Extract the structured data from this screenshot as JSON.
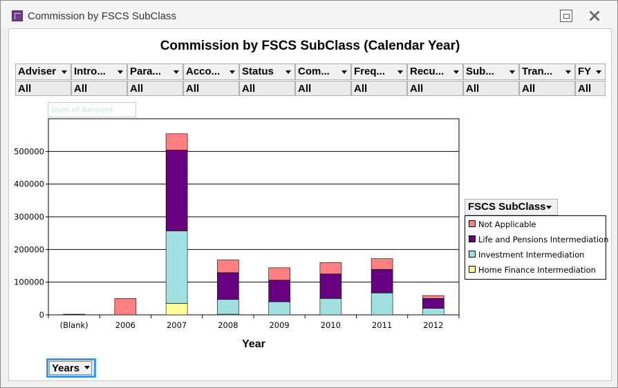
{
  "window": {
    "title": "Commission by FSCS SubClass"
  },
  "filters": [
    {
      "label": "Adviser",
      "value": "All"
    },
    {
      "label": "Intro...",
      "value": "All"
    },
    {
      "label": "Para...",
      "value": "All"
    },
    {
      "label": "Acco...",
      "value": "All"
    },
    {
      "label": "Status",
      "value": "All"
    },
    {
      "label": "Com...",
      "value": "All"
    },
    {
      "label": "Freq...",
      "value": "All"
    },
    {
      "label": "Recu...",
      "value": "All"
    },
    {
      "label": "Sub...",
      "value": "All"
    },
    {
      "label": "Tran...",
      "value": "All"
    },
    {
      "label": "FY",
      "value": "All"
    }
  ],
  "data_field": {
    "label": "Sum of Amount"
  },
  "legend": {
    "title": "FSCS SubClass"
  },
  "row_field": {
    "label": "Years"
  },
  "colors": {
    "not_applicable": "#ff8080",
    "life_pensions": "#660080",
    "investment": "#a0e0e0",
    "home_finance": "#ffff99"
  },
  "chart_data": {
    "type": "bar",
    "stacked": true,
    "title": "Commission by FSCS SubClass (Calendar Year)",
    "xlabel": "Year",
    "ylabel": "",
    "ylim": [
      0,
      600000
    ],
    "yticks": [
      0,
      100000,
      200000,
      300000,
      400000,
      500000
    ],
    "ytick_labels": [
      "0",
      "100000",
      "200000",
      "300000",
      "400000",
      "500000"
    ],
    "grid": true,
    "legend_position": "right",
    "categories": [
      "(Blank)",
      "2006",
      "2007",
      "2008",
      "2009",
      "2010",
      "2011",
      "2012"
    ],
    "series": [
      {
        "name": "Home Finance Intermediation",
        "color": "#ffff99",
        "values": [
          0,
          0,
          35000,
          2000,
          0,
          0,
          0,
          0
        ]
      },
      {
        "name": "Investment Intermediation",
        "color": "#a0e0e0",
        "values": [
          0,
          0,
          222000,
          45000,
          40000,
          50000,
          67000,
          20000
        ]
      },
      {
        "name": "Life and Pensions Intermediation",
        "color": "#660080",
        "values": [
          2000,
          0,
          247000,
          82000,
          66000,
          75000,
          72000,
          30000
        ]
      },
      {
        "name": "Not Applicable",
        "color": "#ff8080",
        "values": [
          0,
          50000,
          50000,
          39000,
          38000,
          35000,
          33000,
          9000
        ]
      }
    ]
  }
}
